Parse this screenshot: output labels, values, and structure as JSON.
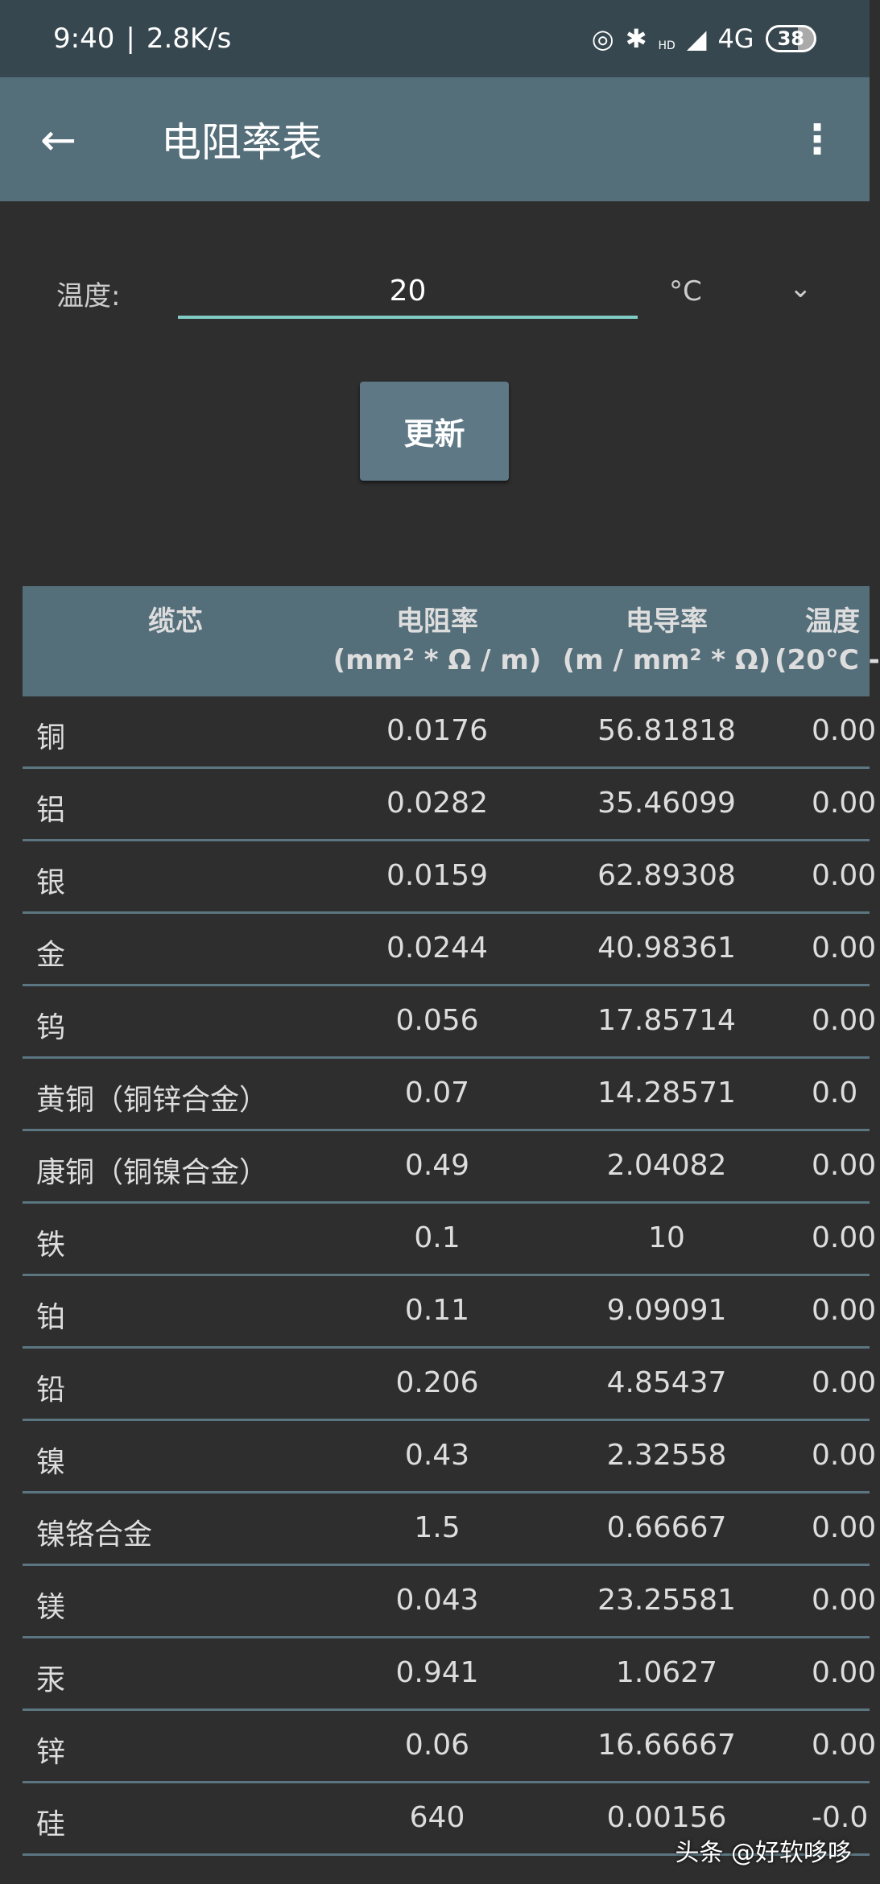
{
  "status": {
    "time": "9:40",
    "speed": "2.8K/s",
    "network": "4G",
    "battery": "38",
    "hd": "HD"
  },
  "appbar": {
    "title": "电阻率表"
  },
  "temperature": {
    "label": "温度:",
    "value": "20",
    "unit": "°C"
  },
  "update_button": "更新",
  "table": {
    "headers": [
      {
        "line1": "缆芯",
        "line2": ""
      },
      {
        "line1": "电阻率",
        "line2": "(mm² * Ω / m)"
      },
      {
        "line1": "电导率",
        "line2": "(m / mm² * Ω)"
      },
      {
        "line1": "温度",
        "line2": "(20°C -"
      }
    ],
    "rows": [
      [
        "铜",
        "0.0176",
        "56.81818",
        "0.00"
      ],
      [
        "铝",
        "0.0282",
        "35.46099",
        "0.00"
      ],
      [
        "银",
        "0.0159",
        "62.89308",
        "0.00"
      ],
      [
        "金",
        "0.0244",
        "40.98361",
        "0.00"
      ],
      [
        "钨",
        "0.056",
        "17.85714",
        "0.00"
      ],
      [
        "黄铜（铜锌合金）",
        "0.07",
        "14.28571",
        "0.0"
      ],
      [
        "康铜（铜镍合金）",
        "0.49",
        "2.04082",
        "0.00"
      ],
      [
        "铁",
        "0.1",
        "10",
        "0.00"
      ],
      [
        "铂",
        "0.11",
        "9.09091",
        "0.00"
      ],
      [
        "铅",
        "0.206",
        "4.85437",
        "0.00"
      ],
      [
        "镍",
        "0.43",
        "2.32558",
        "0.00"
      ],
      [
        "镍铬合金",
        "1.5",
        "0.66667",
        "0.00"
      ],
      [
        "镁",
        "0.043",
        "23.25581",
        "0.00"
      ],
      [
        "汞",
        "0.941",
        "1.0627",
        "0.00"
      ],
      [
        "锌",
        "0.06",
        "16.66667",
        "0.00"
      ],
      [
        "硅",
        "640",
        "0.00156",
        "-0.0"
      ]
    ]
  },
  "watermark": "头条 @好软哆哆"
}
